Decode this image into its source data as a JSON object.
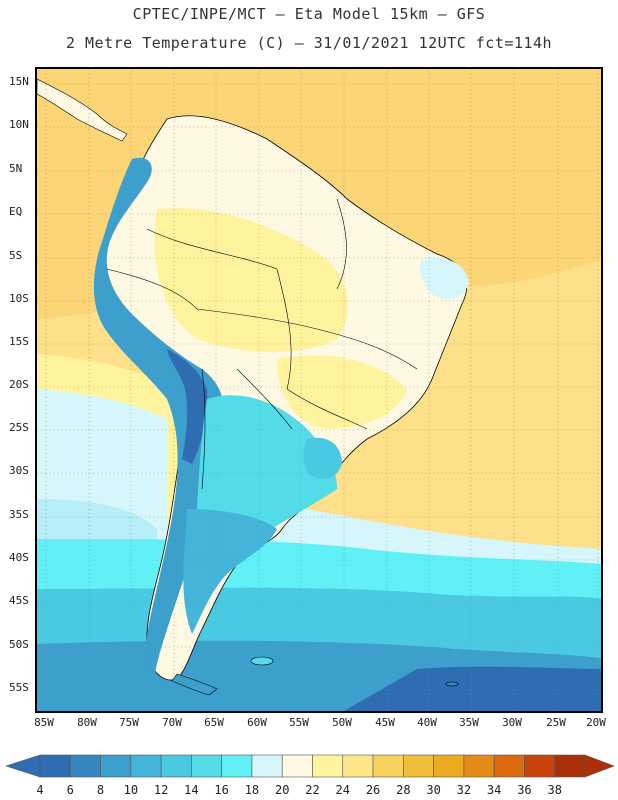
{
  "header": {
    "title_line1": "CPTEC/INPE/MCT –  Eta Model 15km – GFS",
    "title_line2": "2 Metre Temperature (C) – 31/01/2021 12UTC fct=114h"
  },
  "map": {
    "lat_labels": [
      "15N",
      "10N",
      "5N",
      "EQ",
      "5S",
      "10S",
      "15S",
      "20S",
      "25S",
      "30S",
      "35S",
      "40S",
      "45S",
      "50S",
      "55S"
    ],
    "lon_labels": [
      "85W",
      "80W",
      "75W",
      "70W",
      "65W",
      "60W",
      "55W",
      "50W",
      "45W",
      "40W",
      "35W",
      "30W",
      "25W",
      "20W"
    ],
    "grid_style": "dotted",
    "colors": {
      "ocean_warm": "#fdd27a",
      "frame": "#000000",
      "coast": "#000000"
    }
  },
  "colorbar": {
    "labels": [
      "4",
      "6",
      "8",
      "10",
      "12",
      "14",
      "16",
      "18",
      "20",
      "22",
      "24",
      "26",
      "28",
      "30",
      "32",
      "34",
      "36",
      "38"
    ],
    "colors": [
      "#2f6cb2",
      "#3686c0",
      "#3d9fcc",
      "#44b5d8",
      "#4bc9e0",
      "#53dbe8",
      "#60f0f5",
      "#d6f6fb",
      "#fff8e2",
      "#fff39e",
      "#fde68a",
      "#f7d35e",
      "#efbf3a",
      "#ecab1f",
      "#e48a17",
      "#dc6a10",
      "#c8440a",
      "#ab3008"
    ]
  }
}
